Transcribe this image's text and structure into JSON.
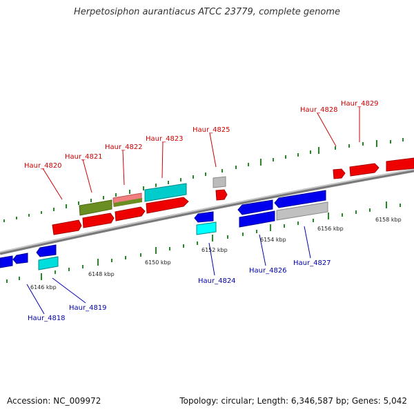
{
  "title": "Herpetosiphon aurantiacus ATCC 23779, complete genome",
  "accession": "Accession: NC_009972",
  "summary": "Topology: circular; Length: 6,346,587 bp; Genes: 5,042",
  "scale_labels": [
    "6146 kbp",
    "6148 kbp",
    "6150 kbp",
    "6152 kbp",
    "6154 kbp",
    "6156 kbp",
    "6158 kbp"
  ],
  "genes_top": [
    "Haur_4820",
    "Haur_4821",
    "Haur_4822",
    "Haur_4823",
    "Haur_4825",
    "Haur_4828",
    "Haur_4829"
  ],
  "genes_bottom": [
    "Haur_4818",
    "Haur_4819",
    "Haur_4824",
    "Haur_4826",
    "Haur_4827"
  ],
  "colors": {
    "forward": "#ff0000",
    "reverse": "#0000ee",
    "cyan": "#00cccc",
    "olive": "#6b8e23",
    "pink": "#f08080",
    "gray": "#bbbbbb",
    "backbone": "#888888",
    "tick": "#228b22",
    "label_top": "#cc0000",
    "label_bottom": "#0000aa"
  }
}
